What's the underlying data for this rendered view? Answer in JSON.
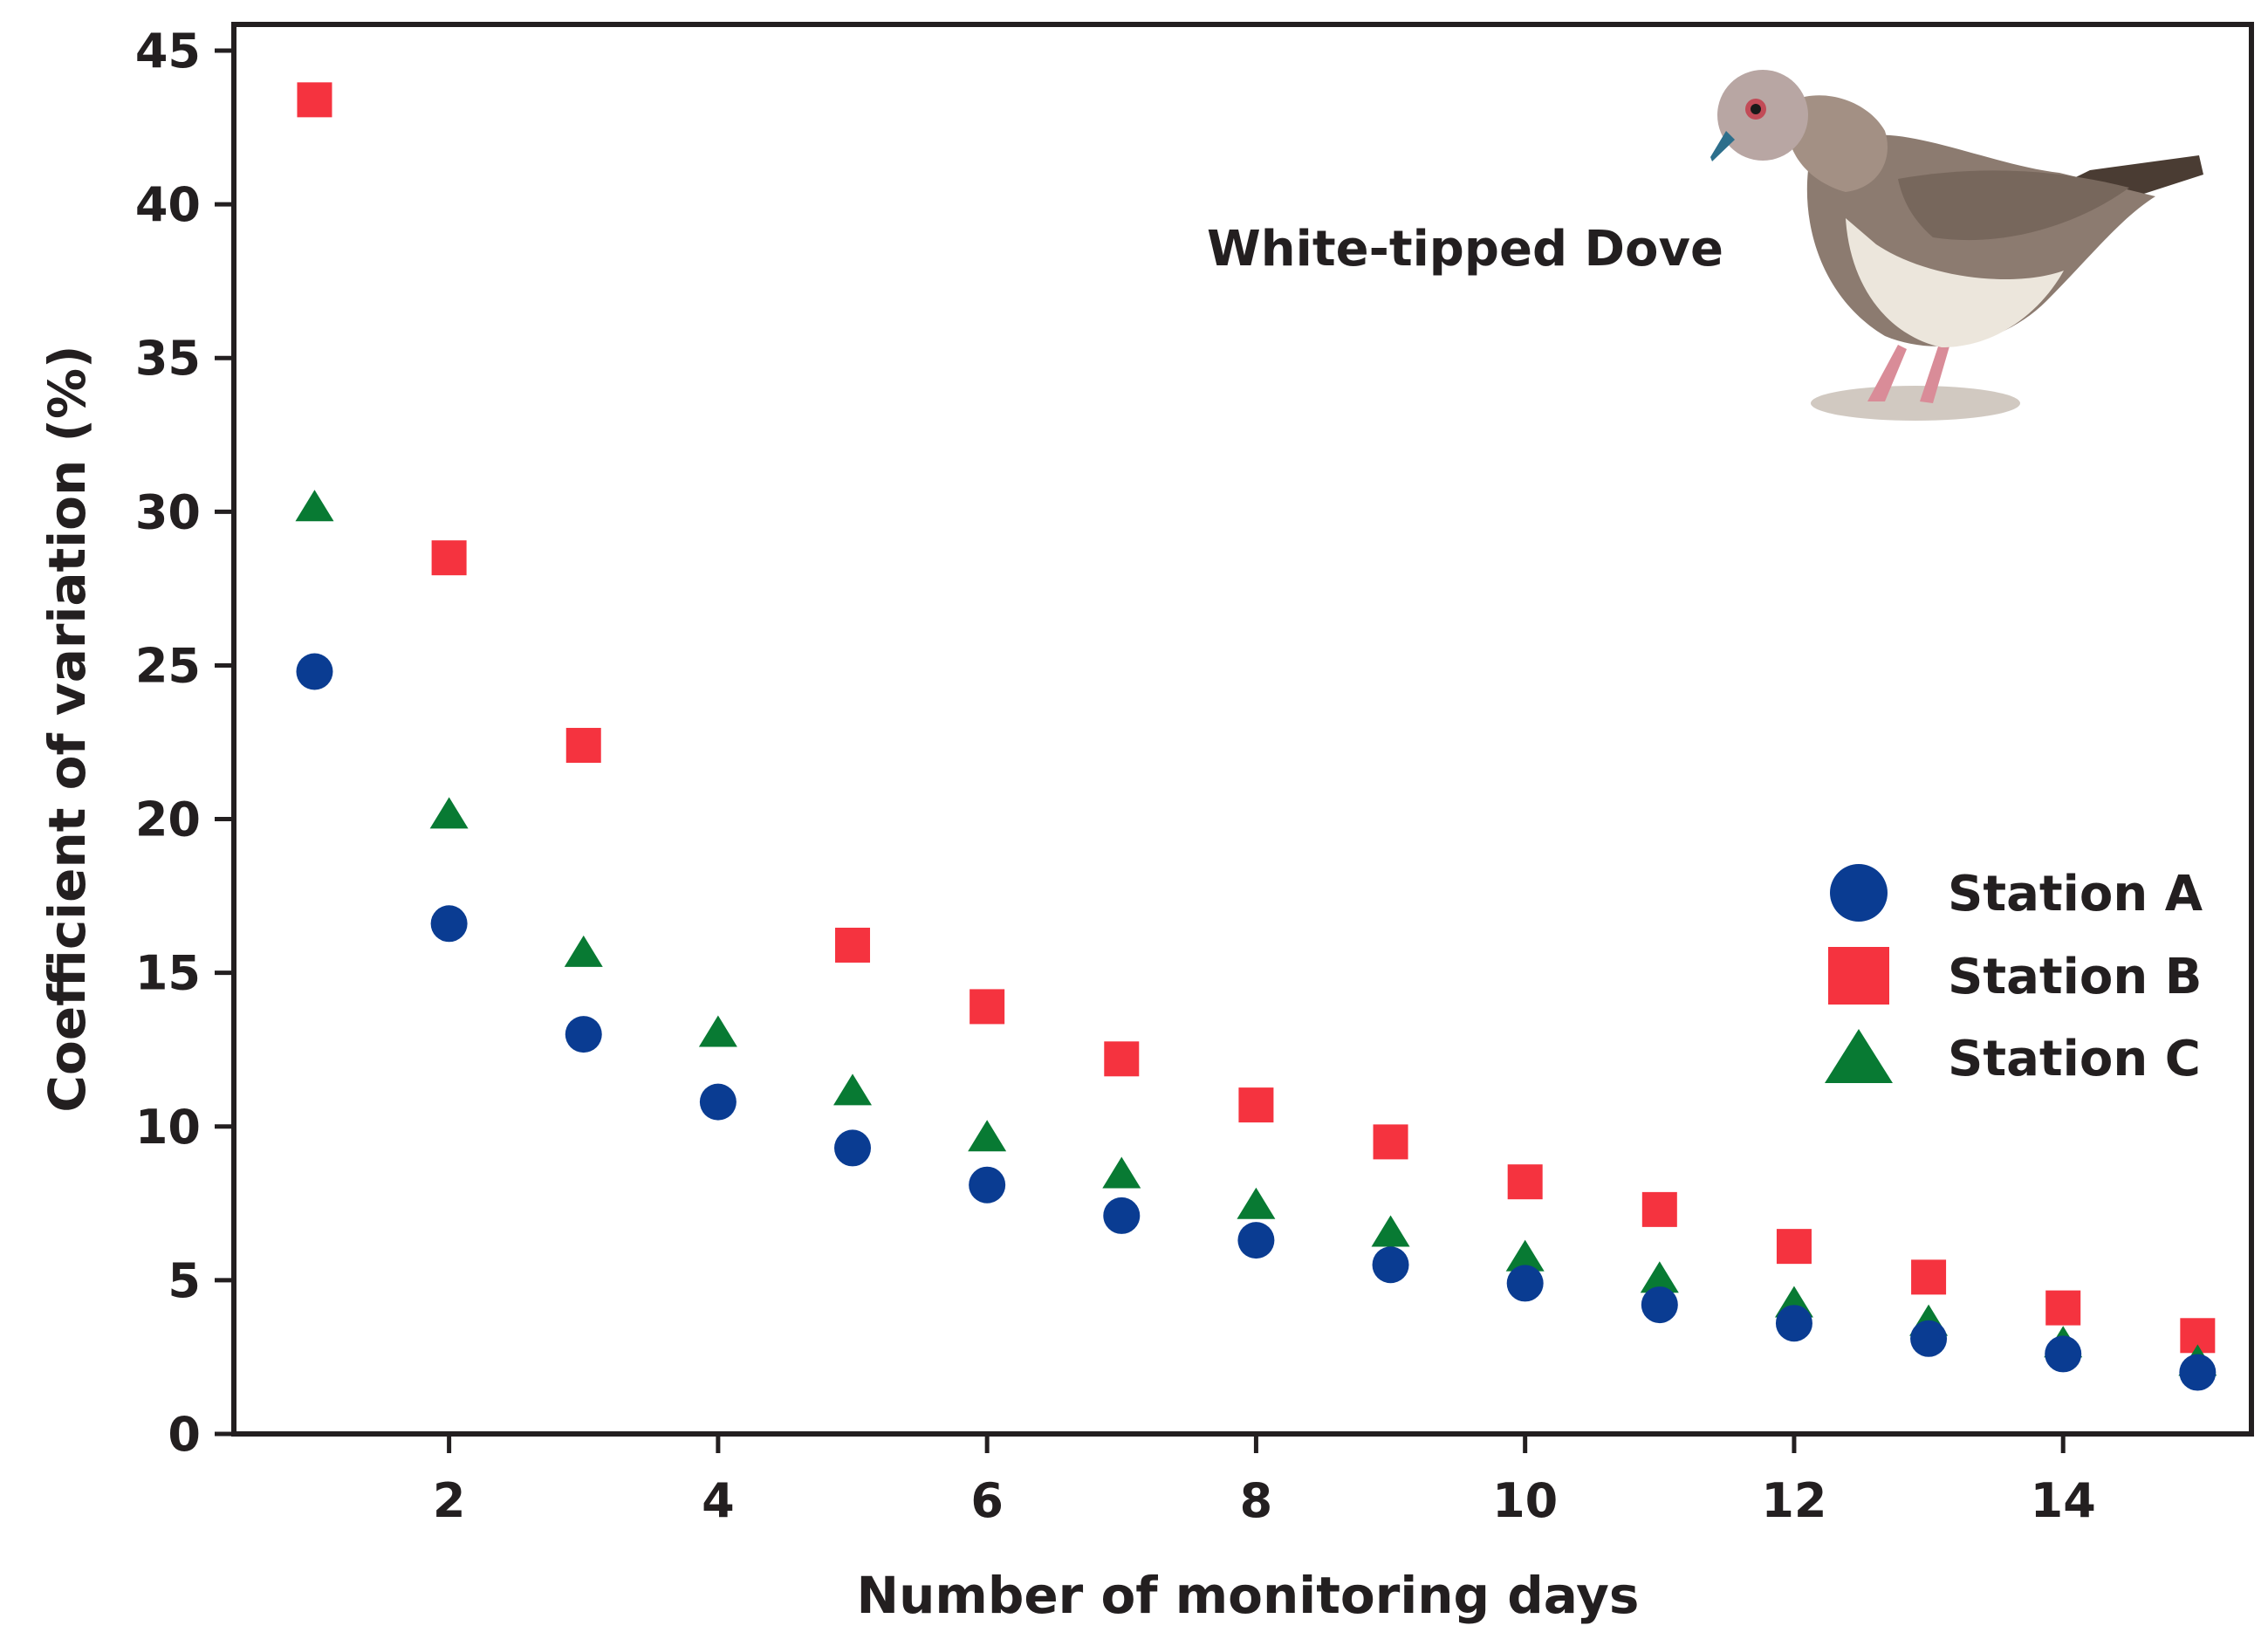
{
  "chart_data": {
    "type": "scatter",
    "title": "",
    "xlabel": "Number of monitoring days",
    "ylabel": "Coefficient of variation (%)",
    "xlim": [
      0.4,
      15.4
    ],
    "ylim": [
      0,
      45
    ],
    "xticks": [
      2,
      4,
      6,
      8,
      10,
      12,
      14
    ],
    "yticks": [
      0,
      5,
      10,
      15,
      20,
      25,
      30,
      35,
      40,
      45
    ],
    "xtick_labels": [
      "2",
      "4",
      "6",
      "8",
      "10",
      "12",
      "14"
    ],
    "ytick_labels": [
      "0",
      "5",
      "10",
      "15",
      "20",
      "25",
      "30",
      "35",
      "40",
      "45"
    ],
    "grid": false,
    "legend_position": "right",
    "annotation": "White-tipped Dove",
    "x": [
      1,
      2,
      3,
      4,
      5,
      6,
      7,
      8,
      9,
      10,
      11,
      12,
      13,
      14,
      15
    ],
    "series": [
      {
        "name": "Station A",
        "marker": "circle",
        "color": "#0a3c92",
        "values": [
          24.8,
          16.6,
          13.0,
          10.8,
          9.3,
          8.1,
          7.1,
          6.3,
          5.5,
          4.9,
          4.2,
          3.6,
          3.1,
          2.6,
          2.0
        ]
      },
      {
        "name": "Station B",
        "marker": "square",
        "color": "#f5333f",
        "values": [
          43.4,
          28.5,
          22.4,
          null,
          15.9,
          13.9,
          12.2,
          10.7,
          9.5,
          8.2,
          7.3,
          6.1,
          5.1,
          4.1,
          3.2
        ]
      },
      {
        "name": "Station C",
        "marker": "triangle",
        "color": "#087a33",
        "values": [
          30.1,
          20.1,
          15.6,
          13.0,
          11.1,
          9.6,
          8.4,
          7.4,
          6.5,
          5.7,
          5.0,
          4.2,
          3.6,
          2.9,
          2.3
        ]
      }
    ]
  }
}
